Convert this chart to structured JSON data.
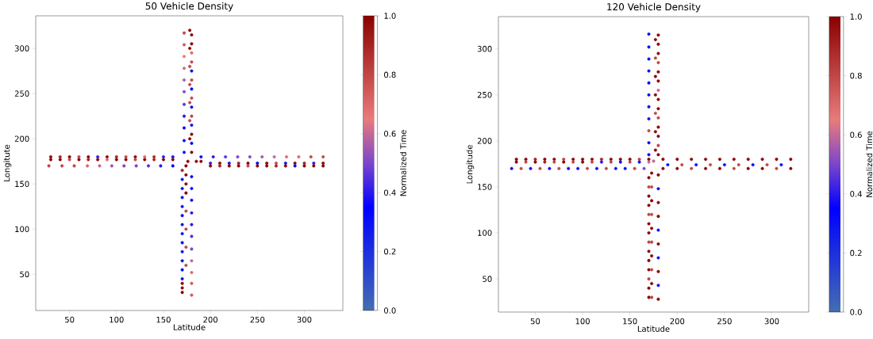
{
  "chart_data": [
    {
      "type": "scatter",
      "title": "50 Vehicle Density",
      "xlabel": "Latitude",
      "ylabel": "Longitute",
      "clabel": "Normalized Time",
      "marker": "circle",
      "xlim": [
        14,
        341
      ],
      "ylim": [
        10,
        336
      ],
      "xticks": [
        50,
        100,
        150,
        200,
        250,
        300
      ],
      "yticks": [
        50,
        100,
        150,
        200,
        250,
        300
      ],
      "clim": [
        0,
        1
      ],
      "cticks": [
        {
          "value": 0,
          "label": "0.0"
        },
        {
          "value": 0.2,
          "label": "0.2"
        },
        {
          "value": 0.4,
          "label": "0.4"
        },
        {
          "value": 0.6,
          "label": "0.6"
        },
        {
          "value": 0.8,
          "label": "0.8"
        },
        {
          "value": 1,
          "label": "1.0"
        }
      ],
      "x": [
        30,
        40,
        50,
        60,
        70,
        80,
        90,
        100,
        110,
        120,
        130,
        140,
        150,
        160,
        30,
        40,
        50,
        60,
        70,
        80,
        90,
        100,
        110,
        120,
        130,
        140,
        150,
        160,
        28,
        42,
        55,
        69,
        82,
        95,
        108,
        121,
        134,
        147,
        160,
        190,
        203,
        216,
        229,
        242,
        255,
        268,
        281,
        294,
        307,
        320,
        200,
        210,
        220,
        230,
        240,
        250,
        260,
        270,
        280,
        290,
        300,
        310,
        320,
        200,
        210,
        220,
        230,
        240,
        250,
        260,
        270,
        280,
        290,
        300,
        310,
        320,
        170,
        170,
        170,
        170,
        170,
        170,
        170,
        170,
        170,
        170,
        170,
        170,
        170,
        170,
        170,
        170,
        174,
        174,
        174,
        174,
        174,
        174,
        174,
        174,
        180,
        180,
        180,
        180,
        180,
        180,
        180,
        180,
        180,
        180,
        180,
        172,
        172,
        172,
        172,
        172,
        172,
        172,
        172,
        172,
        172,
        172,
        180,
        180,
        180,
        180,
        180,
        180,
        180,
        180,
        180,
        180,
        180,
        180,
        180,
        180,
        178,
        178,
        178,
        178,
        178,
        178,
        178,
        176,
        185,
        190
      ],
      "values": [
        180,
        180,
        180,
        180,
        180,
        180,
        180,
        180,
        180,
        180,
        180,
        180,
        180,
        180,
        177,
        177,
        177,
        177,
        177,
        177,
        177,
        177,
        177,
        177,
        177,
        177,
        177,
        177,
        170,
        170,
        170,
        170,
        170,
        170,
        170,
        170,
        170,
        170,
        170,
        180,
        180,
        180,
        180,
        180,
        180,
        180,
        180,
        180,
        180,
        180,
        173,
        173,
        173,
        173,
        173,
        173,
        173,
        173,
        173,
        173,
        173,
        173,
        173,
        170,
        170,
        170,
        170,
        170,
        170,
        170,
        170,
        170,
        170,
        170,
        170,
        170,
        30,
        35,
        40,
        45,
        55,
        65,
        75,
        85,
        95,
        105,
        115,
        125,
        135,
        145,
        155,
        165,
        60,
        80,
        100,
        120,
        140,
        150,
        160,
        170,
        27,
        40,
        52,
        65,
        78,
        92,
        105,
        118,
        132,
        145,
        158,
        185,
        198,
        212,
        225,
        238,
        252,
        265,
        278,
        291,
        304,
        317,
        185,
        195,
        205,
        215,
        225,
        235,
        245,
        255,
        265,
        275,
        285,
        295,
        305,
        315,
        200,
        220,
        240,
        260,
        280,
        300,
        320,
        175,
        175,
        175
      ],
      "cvalues": [
        1,
        0.9,
        1,
        0.8,
        1,
        0.4,
        1,
        0.9,
        0.8,
        1,
        0.7,
        0.9,
        0.4,
        0.3,
        1,
        1,
        0.8,
        1,
        0.9,
        1,
        0.7,
        1,
        1,
        0.8,
        1,
        0.9,
        1,
        1,
        0.8,
        0.8,
        0.8,
        0.7,
        0.6,
        0.55,
        0.5,
        0.5,
        0.45,
        0.4,
        0.35,
        0.3,
        0.4,
        0.45,
        0.5,
        0.5,
        0.55,
        0.6,
        0.7,
        0.7,
        0.8,
        0.8,
        0.4,
        1,
        0.3,
        0.9,
        1,
        0.35,
        1,
        0.8,
        0.3,
        1,
        0.9,
        0.4,
        1,
        1,
        0.9,
        1,
        1,
        0.8,
        1,
        1,
        0.9,
        1,
        0.3,
        1,
        1,
        1,
        1,
        1,
        1,
        0.3,
        0.3,
        0.3,
        0.3,
        0.3,
        0.3,
        0.3,
        0.3,
        0.3,
        0.3,
        0.3,
        0.3,
        0.9,
        0.8,
        0.8,
        0.8,
        0.8,
        1,
        1,
        1,
        1,
        0.75,
        0.75,
        0.7,
        0.6,
        0.5,
        0.45,
        0.4,
        0.4,
        0.3,
        0.3,
        0.3,
        0.3,
        0.3,
        0.35,
        0.4,
        0.45,
        0.5,
        0.55,
        0.6,
        0.65,
        0.75,
        0.8,
        1,
        0.3,
        1,
        0.3,
        0.8,
        0.3,
        0.8,
        0.3,
        0.8,
        0.3,
        0.8,
        0.7,
        1,
        1,
        1,
        0.8,
        0.8,
        0.8,
        0.8,
        1,
        1,
        1,
        1,
        1
      ]
    },
    {
      "type": "scatter",
      "title": "120 Vehicle Density",
      "xlabel": "Latitude",
      "ylabel": "Longitude",
      "clabel": "Normalized Time",
      "marker": "circle",
      "xlim": [
        11,
        339
      ],
      "ylim": [
        14,
        335
      ],
      "xticks": [
        50,
        100,
        150,
        200,
        250,
        300
      ],
      "yticks": [
        50,
        100,
        150,
        200,
        250,
        300
      ],
      "clim": [
        0,
        1
      ],
      "cticks": [
        {
          "value": 0,
          "label": "0.0"
        },
        {
          "value": 0.2,
          "label": "0.2"
        },
        {
          "value": 0.4,
          "label": "0.4"
        },
        {
          "value": 0.6,
          "label": "0.6"
        },
        {
          "value": 0.8,
          "label": "0.8"
        },
        {
          "value": 1,
          "label": "1.0"
        }
      ],
      "x": [
        30,
        40,
        50,
        60,
        70,
        80,
        90,
        100,
        110,
        120,
        130,
        140,
        150,
        160,
        170,
        30,
        40,
        50,
        60,
        70,
        80,
        90,
        100,
        110,
        120,
        130,
        140,
        150,
        160,
        170,
        25,
        35,
        45,
        55,
        65,
        75,
        85,
        95,
        105,
        115,
        125,
        135,
        145,
        155,
        165,
        185,
        200,
        215,
        230,
        245,
        260,
        275,
        290,
        305,
        320,
        190,
        205,
        220,
        235,
        250,
        265,
        280,
        295,
        310,
        185,
        200,
        215,
        230,
        245,
        260,
        275,
        290,
        305,
        320,
        170,
        170,
        170,
        170,
        170,
        170,
        170,
        170,
        170,
        170,
        170,
        170,
        170,
        170,
        173,
        173,
        173,
        173,
        173,
        173,
        173,
        173,
        173,
        173,
        180,
        180,
        180,
        180,
        180,
        180,
        180,
        180,
        180,
        180,
        170,
        170,
        170,
        170,
        170,
        170,
        170,
        170,
        170,
        170,
        170,
        180,
        180,
        180,
        180,
        180,
        180,
        180,
        180,
        180,
        180,
        180,
        180,
        180,
        180,
        177,
        177,
        177,
        177,
        177,
        177,
        177,
        175
      ],
      "values": [
        180,
        180,
        180,
        180,
        180,
        180,
        180,
        180,
        180,
        180,
        180,
        180,
        180,
        180,
        180,
        177,
        177,
        177,
        177,
        177,
        177,
        177,
        177,
        177,
        177,
        177,
        177,
        177,
        177,
        177,
        170,
        170,
        170,
        170,
        170,
        170,
        170,
        170,
        170,
        170,
        170,
        170,
        170,
        170,
        170,
        180,
        180,
        180,
        180,
        180,
        180,
        180,
        180,
        180,
        180,
        174,
        174,
        174,
        174,
        174,
        174,
        174,
        174,
        174,
        170,
        170,
        170,
        170,
        170,
        170,
        170,
        170,
        170,
        170,
        30,
        40,
        50,
        60,
        70,
        80,
        90,
        100,
        110,
        120,
        130,
        140,
        150,
        160,
        30,
        45,
        60,
        75,
        90,
        105,
        120,
        135,
        150,
        165,
        28,
        43,
        58,
        73,
        88,
        103,
        118,
        133,
        148,
        163,
        185,
        198,
        211,
        224,
        237,
        250,
        263,
        276,
        289,
        302,
        316,
        185,
        195,
        205,
        215,
        225,
        235,
        245,
        255,
        265,
        275,
        285,
        295,
        305,
        315,
        190,
        210,
        230,
        250,
        270,
        290,
        310,
        178
      ],
      "cvalues": [
        1,
        1,
        0.9,
        1,
        1,
        0.8,
        1,
        1,
        1,
        0.9,
        1,
        1,
        1,
        0.8,
        1,
        1,
        0.8,
        1,
        0.9,
        0.8,
        1,
        0.8,
        1,
        0.8,
        0.4,
        0.8,
        0.3,
        0.8,
        0.3,
        0.6,
        0.3,
        0.8,
        0.3,
        0.8,
        0.3,
        0.8,
        0.3,
        0.3,
        0.8,
        0.3,
        0.8,
        0.3,
        0.3,
        0.8,
        0.5,
        1,
        1,
        1,
        1,
        1,
        1,
        1,
        1,
        1,
        1,
        0.3,
        0.8,
        0.3,
        0.8,
        0.3,
        0.8,
        0.3,
        0.8,
        0.3,
        1,
        1,
        0.8,
        1,
        1,
        0.8,
        1,
        1,
        0.8,
        1,
        1,
        1,
        0.8,
        1,
        1,
        1,
        0.8,
        1,
        1,
        0.8,
        1,
        1,
        0.8,
        1,
        0.8,
        1,
        0.8,
        1,
        0.8,
        1,
        0.8,
        1,
        0.8,
        1,
        1,
        0.3,
        1,
        0.3,
        1,
        0.3,
        1,
        1,
        0.3,
        1,
        0.3,
        0.3,
        0.8,
        0.3,
        0.3,
        0.3,
        0.3,
        0.3,
        0.3,
        0.3,
        0.3,
        1,
        0.8,
        1,
        1,
        0.8,
        1,
        1,
        0.6,
        1,
        1,
        0.8,
        1,
        1,
        1,
        1,
        1,
        0.8,
        1,
        1,
        0.8,
        1,
        0.6
      ]
    }
  ]
}
